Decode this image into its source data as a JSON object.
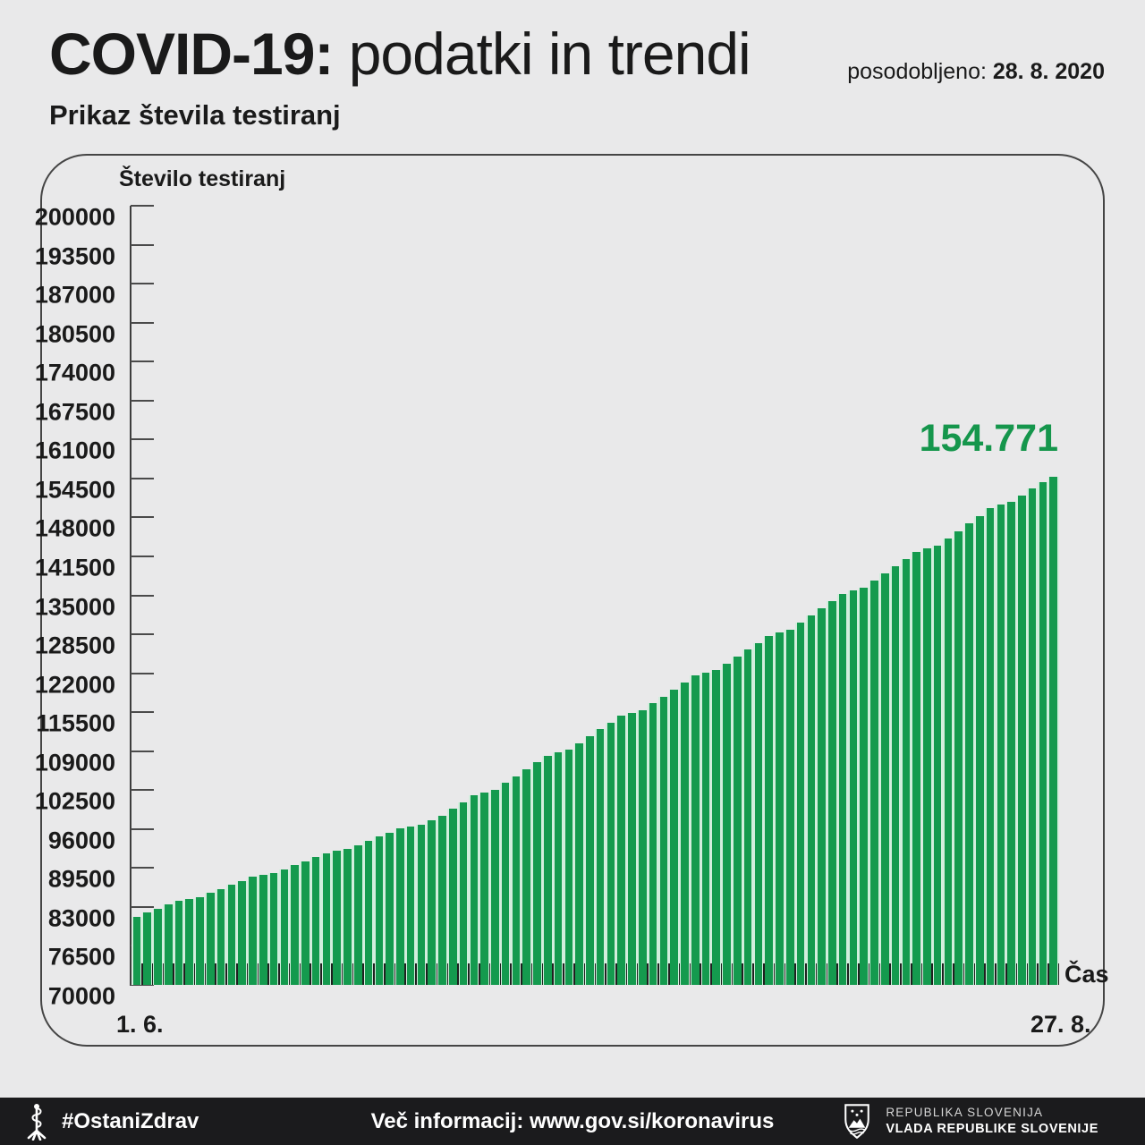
{
  "header": {
    "title_bold": "COVID-19:",
    "title_rest": " podatki in trendi",
    "updated_label": "posodobljeno: ",
    "updated_date": "28. 8. 2020",
    "subtitle": "Prikaz števila testiranj"
  },
  "chart_data": {
    "type": "bar",
    "title": "Prikaz števila testiranj",
    "ylabel": "Število testiranj",
    "xlabel": "Čas",
    "x_first_label": "1. 6.",
    "x_last_label": "27. 8.",
    "ylim": [
      70000,
      200000
    ],
    "ytick_step": 6500,
    "grid": false,
    "legend": "none",
    "y_ticks": [
      "200000",
      "193500",
      "187000",
      "180500",
      "174000",
      "167500",
      "161000",
      "154500",
      "148000",
      "141500",
      "135000",
      "128500",
      "122000",
      "115500",
      "109000",
      "102500",
      "96000",
      "89500",
      "83000",
      "76500",
      "70000"
    ],
    "bar_color": "#149a4e",
    "bar_gap_color": "#d2eedd",
    "annotation": {
      "text": "154.771",
      "value": 154771,
      "color": "#15964c"
    },
    "values": [
      81366,
      82030,
      82700,
      83360,
      84020,
      84380,
      84640,
      85310,
      85980,
      86650,
      87320,
      87990,
      88350,
      88610,
      89290,
      89970,
      90650,
      91330,
      92010,
      92380,
      92650,
      93340,
      94030,
      94720,
      95410,
      96100,
      96480,
      96760,
      97470,
      98180,
      99330,
      100480,
      101630,
      102130,
      102530,
      103680,
      104830,
      105980,
      107130,
      108280,
      108780,
      109180,
      110330,
      111480,
      112630,
      113780,
      114930,
      115430,
      115830,
      116980,
      118130,
      119280,
      120430,
      121580,
      122080,
      122480,
      123630,
      124780,
      125930,
      127080,
      128230,
      128780,
      129230,
      130430,
      131630,
      132830,
      134030,
      135230,
      135780,
      136230,
      137430,
      138630,
      139830,
      141030,
      142230,
      142780,
      143230,
      144480,
      145730,
      146980,
      148230,
      149480,
      150080,
      150580,
      151680,
      152780,
      153880,
      154771
    ]
  },
  "footer": {
    "hashtag": "#OstaniZdrav",
    "info": "Več informacij: www.gov.si/koronavirus",
    "gov_line1": "REPUBLIKA SLOVENIJA",
    "gov_line2": "VLADA REPUBLIKE SLOVENIJE"
  }
}
